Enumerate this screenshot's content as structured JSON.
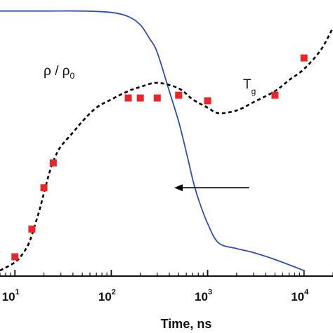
{
  "chart_data": {
    "type": "line",
    "xlabel": "Time, ns",
    "xscale": "log",
    "xlim": [
      7,
      20000
    ],
    "ylim": [
      0,
      1
    ],
    "x_ticks": [
      {
        "base": "10",
        "exp": "1",
        "value": 10
      },
      {
        "base": "10",
        "exp": "2",
        "value": 100
      },
      {
        "base": "10",
        "exp": "3",
        "value": 1000
      },
      {
        "base": "10",
        "exp": "4",
        "value": 10000
      }
    ],
    "y_ticks_shown": false,
    "annotations": {
      "rho": {
        "main": "ρ / ρ",
        "sub": "0"
      },
      "tg": {
        "main": "T",
        "sub": "g"
      }
    },
    "arrow": {
      "from_x": 2700,
      "to_x": 450,
      "y": 0.32,
      "direction": "left"
    },
    "colors": {
      "density": "#3050b0",
      "tg_curve": "#000000",
      "markers": "#e8262b"
    },
    "series": [
      {
        "style": "solid",
        "x": [
          7,
          20,
          50,
          100,
          150,
          200,
          250,
          300,
          400,
          500,
          600,
          700,
          800,
          1000,
          1300,
          2000,
          3000,
          5000,
          10000
        ],
        "y": [
          0.96,
          0.96,
          0.96,
          0.955,
          0.94,
          0.91,
          0.86,
          0.81,
          0.67,
          0.56,
          0.45,
          0.35,
          0.28,
          0.19,
          0.12,
          0.1,
          0.085,
          0.06,
          0.02
        ]
      },
      {
        "style": "dotted",
        "x": [
          7,
          10,
          12,
          14,
          16,
          18,
          20,
          23,
          26,
          30,
          40,
          50,
          70,
          100,
          150,
          200,
          300,
          500,
          700,
          1000,
          1300,
          2000,
          3000,
          5000,
          7000,
          10000,
          15000,
          20000
        ],
        "y": [
          0.02,
          0.05,
          0.08,
          0.12,
          0.18,
          0.24,
          0.3,
          0.38,
          0.43,
          0.47,
          0.52,
          0.56,
          0.61,
          0.64,
          0.67,
          0.685,
          0.7,
          0.68,
          0.64,
          0.61,
          0.59,
          0.6,
          0.63,
          0.67,
          0.71,
          0.75,
          0.82,
          0.9
        ]
      },
      {
        "style": "markers",
        "x": [
          10,
          15,
          20,
          25,
          150,
          200,
          300,
          500,
          1000,
          5000,
          10000
        ],
        "y": [
          0.07,
          0.17,
          0.32,
          0.41,
          0.645,
          0.645,
          0.645,
          0.655,
          0.635,
          0.655,
          0.79
        ]
      }
    ]
  }
}
